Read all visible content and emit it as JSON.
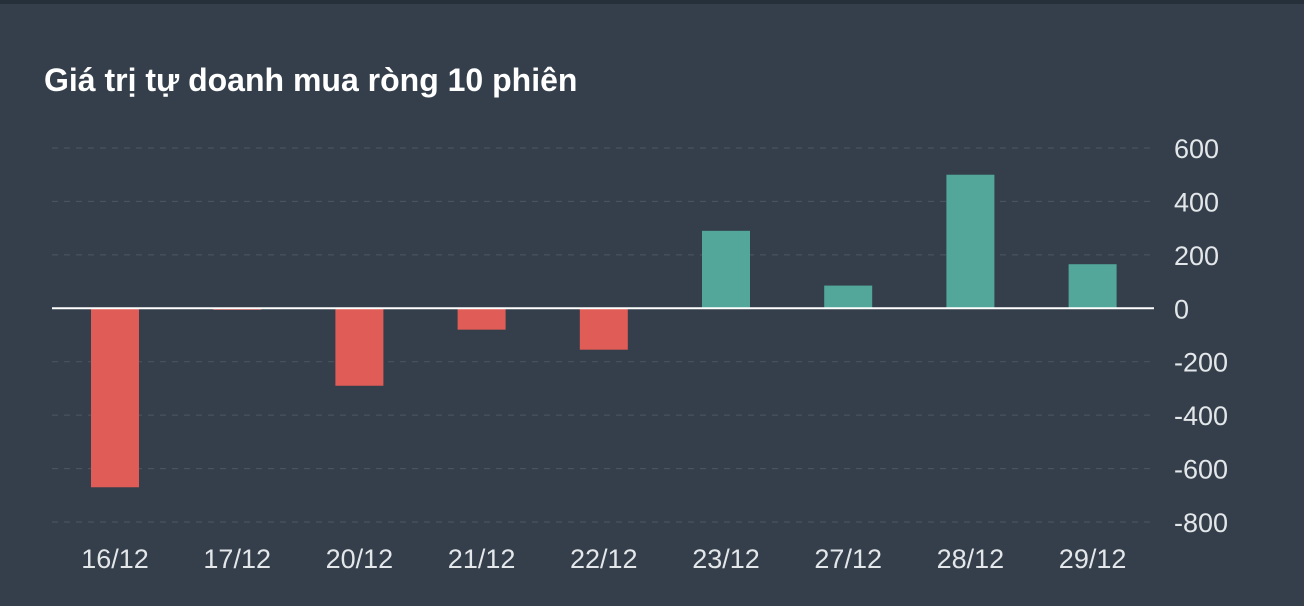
{
  "colors": {
    "background": "#343f4b",
    "positive": "#52a69a",
    "negative": "#e05c56",
    "gridline": "#4c5763",
    "zero_line": "#ffffff",
    "text": "#e4e7ea"
  },
  "chart_data": {
    "type": "bar",
    "title": "Giá trị tự doanh mua ròng 10 phiên",
    "xlabel": "",
    "ylabel": "",
    "categories": [
      "16/12",
      "17/12",
      "20/12",
      "21/12",
      "22/12",
      "23/12",
      "27/12",
      "28/12",
      "29/12"
    ],
    "values": [
      -670,
      -5,
      -290,
      -80,
      -155,
      290,
      85,
      500,
      165
    ],
    "ylim": [
      -800,
      600
    ],
    "yticks": [
      600,
      400,
      200,
      0,
      -200,
      -400,
      -600,
      -800
    ],
    "ytick_labels": [
      "600",
      "400",
      "200",
      "0",
      "-200",
      "-400",
      "-600",
      "-800"
    ],
    "grid": true,
    "y_axis_position": "right",
    "legend": "none"
  }
}
